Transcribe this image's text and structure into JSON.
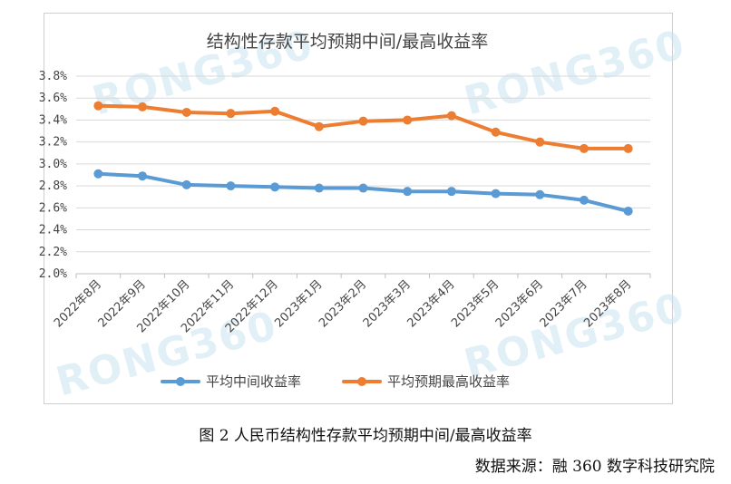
{
  "chart_data": {
    "type": "line",
    "title": "结构性存款平均预期中间/最高收益率",
    "categories": [
      "2022年8月",
      "2022年9月",
      "2022年10月",
      "2022年11月",
      "2022年12月",
      "2023年1月",
      "2023年2月",
      "2023年3月",
      "2023年4月",
      "2023年5月",
      "2023年6月",
      "2023年7月",
      "2023年8月"
    ],
    "series": [
      {
        "name": "平均中间收益率",
        "color": "#5b9bd5",
        "values": [
          2.91,
          2.89,
          2.81,
          2.8,
          2.79,
          2.78,
          2.78,
          2.75,
          2.75,
          2.73,
          2.72,
          2.67,
          2.57
        ]
      },
      {
        "name": "平均预期最高收益率",
        "color": "#ed7d31",
        "values": [
          3.53,
          3.52,
          3.47,
          3.46,
          3.48,
          3.34,
          3.39,
          3.4,
          3.44,
          3.29,
          3.2,
          3.14,
          3.14
        ]
      }
    ],
    "ylim": [
      2.0,
      3.8
    ],
    "yticks": [
      "2.0%",
      "2.2%",
      "2.4%",
      "2.6%",
      "2.8%",
      "3.0%",
      "3.2%",
      "3.4%",
      "3.6%",
      "3.8%"
    ],
    "grid": true,
    "legend_position": "bottom"
  },
  "watermark": "RONG360",
  "caption": "图 2 人民币结构性存款平均预期中间/最高收益率",
  "source": "数据来源：融 360 数字科技研究院"
}
